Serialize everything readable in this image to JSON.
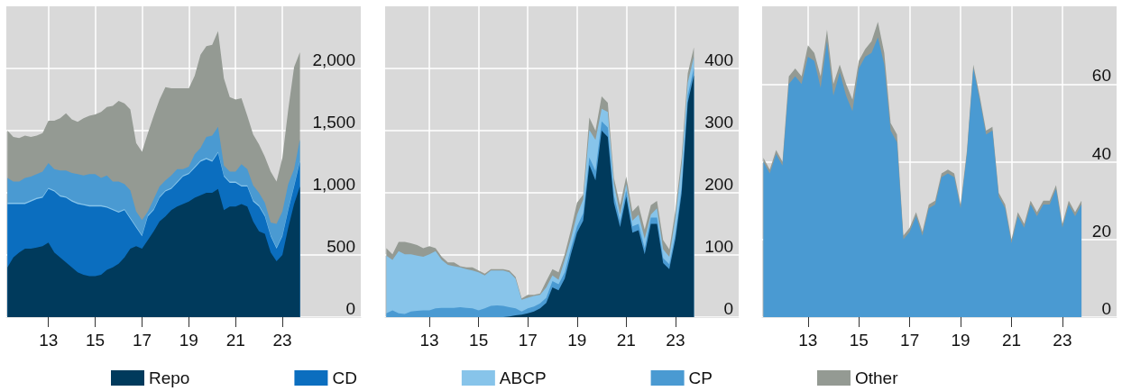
{
  "chart_data": [
    {
      "type": "area",
      "stacked": true,
      "grid": true,
      "legend": "bottom",
      "x": [
        11.25,
        11.5,
        11.75,
        12,
        12.25,
        12.5,
        12.75,
        13,
        13.25,
        13.5,
        13.75,
        14,
        14.25,
        14.5,
        14.75,
        15,
        15.25,
        15.5,
        15.75,
        16,
        16.25,
        16.5,
        16.75,
        17,
        17.25,
        17.5,
        17.75,
        18,
        18.25,
        18.5,
        18.75,
        19,
        19.25,
        19.5,
        19.75,
        20,
        20.25,
        20.5,
        20.75,
        21,
        21.25,
        21.5,
        21.75,
        22,
        22.25,
        22.5,
        22.75,
        23,
        23.25,
        23.5,
        23.75
      ],
      "xlim": [
        11.2,
        26.35
      ],
      "xticks": [
        13,
        15,
        17,
        19,
        21,
        23
      ],
      "ylim": [
        0,
        2500
      ],
      "yticks": [
        0,
        500,
        {
          "value": 1000,
          "label": "1,000"
        },
        {
          "value": 1500,
          "label": "1,500"
        },
        {
          "value": 2000,
          "label": "2,000"
        }
      ],
      "series": [
        {
          "name": "Repo",
          "color": "#003a5c",
          "values": [
            400,
            480,
            520,
            550,
            550,
            560,
            570,
            600,
            520,
            480,
            440,
            400,
            360,
            340,
            330,
            330,
            340,
            380,
            400,
            430,
            480,
            550,
            570,
            550,
            620,
            690,
            770,
            810,
            860,
            890,
            910,
            930,
            960,
            980,
            1000,
            1000,
            1030,
            860,
            890,
            890,
            910,
            890,
            770,
            690,
            670,
            520,
            450,
            500,
            720,
            910,
            1050
          ]
        },
        {
          "name": "CD",
          "color": "#0b6ebf",
          "values": [
            510,
            430,
            390,
            360,
            380,
            390,
            390,
            430,
            490,
            490,
            520,
            530,
            550,
            560,
            560,
            560,
            550,
            500,
            460,
            410,
            380,
            240,
            150,
            100,
            190,
            170,
            190,
            200,
            170,
            190,
            220,
            220,
            240,
            270,
            270,
            250,
            290,
            270,
            190,
            190,
            140,
            160,
            160,
            200,
            140,
            130,
            100,
            150,
            140,
            140,
            200
          ]
        },
        {
          "name": "ABCP",
          "color": "#87c4ea",
          "values": [
            10,
            10,
            10,
            10,
            10,
            10,
            10,
            10,
            10,
            10,
            10,
            10,
            10,
            10,
            10,
            10,
            10,
            10,
            10,
            10,
            10,
            10,
            10,
            10,
            10,
            10,
            10,
            10,
            10,
            10,
            10,
            10,
            10,
            10,
            10,
            10,
            10,
            10,
            10,
            10,
            10,
            10,
            10,
            10,
            10,
            10,
            10,
            10,
            10,
            10,
            10
          ]
        },
        {
          "name": "CP",
          "color": "#4a9ad2",
          "values": [
            200,
            170,
            170,
            200,
            190,
            190,
            200,
            200,
            170,
            200,
            210,
            220,
            230,
            230,
            250,
            250,
            220,
            250,
            220,
            240,
            200,
            220,
            120,
            120,
            30,
            80,
            80,
            80,
            100,
            100,
            50,
            50,
            100,
            100,
            170,
            200,
            200,
            80,
            80,
            80,
            170,
            130,
            120,
            100,
            100,
            100,
            190,
            190,
            200,
            130,
            170
          ]
        },
        {
          "name": "Other",
          "color": "#949a93",
          "values": [
            380,
            360,
            350,
            340,
            320,
            310,
            310,
            340,
            390,
            420,
            460,
            430,
            420,
            460,
            470,
            480,
            530,
            550,
            610,
            650,
            650,
            650,
            550,
            550,
            630,
            670,
            700,
            750,
            700,
            650,
            650,
            630,
            630,
            750,
            730,
            730,
            770,
            700,
            600,
            580,
            530,
            430,
            410,
            390,
            370,
            410,
            340,
            430,
            600,
            820,
            700
          ]
        }
      ]
    },
    {
      "type": "area",
      "stacked": true,
      "grid": true,
      "x": [
        11.25,
        11.5,
        11.75,
        12,
        12.25,
        12.5,
        12.75,
        13,
        13.25,
        13.5,
        13.75,
        14,
        14.25,
        14.5,
        14.75,
        15,
        15.25,
        15.5,
        15.75,
        16,
        16.25,
        16.5,
        16.75,
        17,
        17.25,
        17.5,
        17.75,
        18,
        18.25,
        18.5,
        18.75,
        19,
        19.25,
        19.5,
        19.75,
        20,
        20.25,
        20.5,
        20.75,
        21,
        21.25,
        21.5,
        21.75,
        22,
        22.25,
        22.5,
        22.75,
        23,
        23.25,
        23.5,
        23.75
      ],
      "xlim": [
        11.2,
        25.57
      ],
      "xticks": [
        13,
        15,
        17,
        19,
        21,
        23
      ],
      "ylim": [
        0,
        500
      ],
      "yticks": [
        0,
        100,
        200,
        300,
        400
      ],
      "series": [
        {
          "name": "Repo",
          "color": "#003a5c",
          "values": [
            0,
            0,
            0,
            0,
            0,
            0,
            0,
            0,
            0,
            0,
            0,
            0,
            0,
            0,
            0,
            0,
            0,
            0,
            0,
            0,
            1,
            3,
            4,
            6,
            9,
            14,
            23,
            48,
            43,
            62,
            101,
            136,
            155,
            245,
            220,
            300,
            290,
            184,
            145,
            194,
            136,
            140,
            101,
            150,
            150,
            87,
            77,
            126,
            199,
            345,
            389
          ]
        },
        {
          "name": "CP",
          "color": "#4a9ad2",
          "values": [
            6,
            11,
            6,
            5,
            9,
            10,
            11,
            11,
            14,
            15,
            15,
            15,
            16,
            15,
            14,
            11,
            14,
            18,
            19,
            18,
            15,
            11,
            5,
            8,
            8,
            8,
            8,
            10,
            10,
            10,
            10,
            10,
            12,
            12,
            15,
            15,
            15,
            12,
            10,
            10,
            10,
            10,
            10,
            10,
            10,
            8,
            8,
            8,
            10,
            12,
            12
          ]
        },
        {
          "name": "ABCP",
          "color": "#87c4ea",
          "values": [
            93,
            81,
            100,
            96,
            92,
            89,
            86,
            90,
            92,
            77,
            69,
            67,
            64,
            62,
            61,
            61,
            53,
            57,
            56,
            57,
            56,
            48,
            19,
            17,
            17,
            14,
            17,
            9,
            7,
            20,
            15,
            19,
            22,
            44,
            50,
            20,
            25,
            18,
            10,
            10,
            9,
            15,
            15,
            5,
            15,
            14,
            12,
            26,
            36,
            20,
            18
          ]
        },
        {
          "name": "Other",
          "color": "#949a93",
          "values": [
            12,
            9,
            15,
            20,
            18,
            17,
            14,
            13,
            5,
            5,
            4,
            6,
            2,
            3,
            5,
            3,
            3,
            2,
            2,
            2,
            3,
            3,
            2,
            5,
            2,
            2,
            10,
            10,
            12,
            9,
            14,
            19,
            8,
            20,
            15,
            20,
            15,
            10,
            15,
            12,
            15,
            15,
            15,
            15,
            12,
            15,
            12,
            12,
            12,
            15,
            15
          ]
        }
      ]
    },
    {
      "type": "area",
      "stacked": true,
      "grid": true,
      "x": [
        11.25,
        11.5,
        11.75,
        12,
        12.25,
        12.5,
        12.75,
        13,
        13.25,
        13.5,
        13.75,
        14,
        14.25,
        14.5,
        14.75,
        15,
        15.25,
        15.5,
        15.75,
        16,
        16.25,
        16.5,
        16.75,
        17,
        17.25,
        17.5,
        17.75,
        18,
        18.25,
        18.5,
        18.75,
        19,
        19.25,
        19.5,
        19.75,
        20,
        20.25,
        20.5,
        20.75,
        21,
        21.25,
        21.5,
        21.75,
        22,
        22.25,
        22.5,
        22.75,
        23,
        23.25,
        23.5,
        23.75
      ],
      "xlim": [
        11.2,
        25.13
      ],
      "xticks": [
        13,
        15,
        17,
        19,
        21,
        23
      ],
      "ylim": [
        0,
        80
      ],
      "yticks": [
        0,
        20,
        40,
        60
      ],
      "series": [
        {
          "name": "CP",
          "color": "#4a9ad2",
          "values": [
            40,
            37,
            42,
            39,
            60,
            62,
            60,
            67,
            66,
            59,
            71,
            57,
            63,
            57,
            53,
            64,
            67,
            68,
            72,
            65,
            48,
            45,
            20,
            22,
            26,
            21,
            28,
            29,
            36,
            37,
            36,
            28,
            42,
            64,
            56,
            47,
            48,
            31,
            28,
            19,
            26,
            23,
            29,
            26,
            29,
            29,
            33,
            23,
            29,
            26,
            29
          ]
        },
        {
          "name": "Other",
          "color": "#949a93",
          "values": [
            1,
            1,
            1,
            1,
            2,
            2,
            2,
            3,
            2,
            3,
            3,
            3,
            2,
            3,
            3,
            2,
            2,
            3,
            4,
            3,
            2,
            2,
            1,
            1,
            1,
            1,
            1,
            1,
            1,
            1,
            1,
            1,
            1,
            1,
            1,
            1,
            1,
            1,
            1,
            1,
            1,
            1,
            1,
            1,
            1,
            1,
            1,
            1,
            1,
            1,
            1
          ]
        }
      ]
    }
  ]
}
